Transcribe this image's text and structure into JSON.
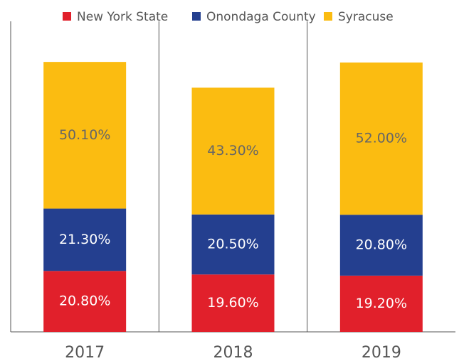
{
  "chart_data": {
    "type": "stacked_bar",
    "categories": [
      "2017",
      "2018",
      "2019"
    ],
    "series": [
      {
        "name": "New York State",
        "color": "#e1202b",
        "values": [
          20.8,
          19.6,
          19.2
        ],
        "value_labels": [
          "20.80%",
          "19.60%",
          "19.20%"
        ]
      },
      {
        "name": "Onondaga County",
        "color": "#243f8f",
        "values": [
          21.3,
          20.5,
          20.8
        ],
        "value_labels": [
          "21.30%",
          "20.50%",
          "20.80%"
        ]
      },
      {
        "name": "Syracuse",
        "color": "#fbbc11",
        "values": [
          50.1,
          43.3,
          52.0
        ],
        "value_labels": [
          "50.10%",
          "43.30%",
          "52.00%"
        ]
      }
    ],
    "ylim": [
      0,
      100
    ]
  }
}
